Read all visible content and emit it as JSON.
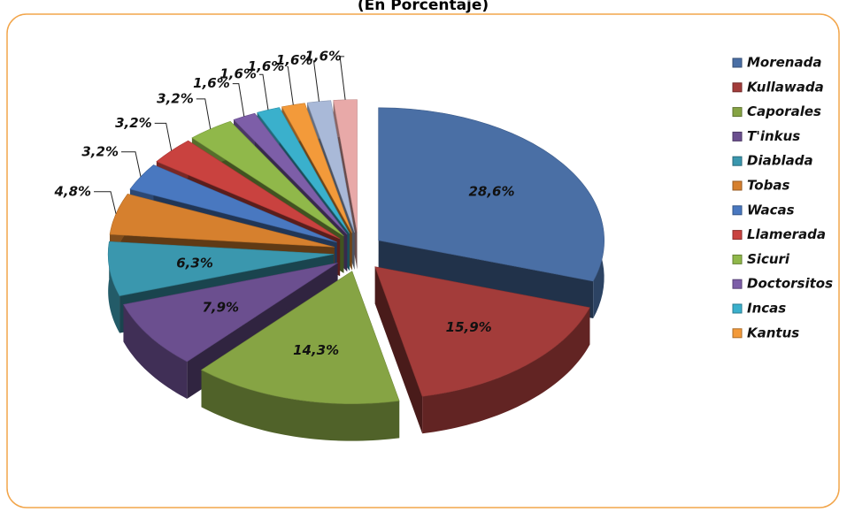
{
  "chart_data": {
    "type": "pie3d",
    "title": "(En Porcentaje)",
    "categories": [
      "Morenada",
      "Kullawada",
      "Caporales",
      "T'inkus",
      "Diablada",
      "Tobas",
      "Wacas",
      "Llamerada",
      "Sicuri",
      "Doctorsitos",
      "Incas",
      "Kantus",
      null,
      null
    ],
    "values": [
      28.6,
      15.9,
      14.3,
      7.9,
      6.3,
      4.8,
      3.2,
      3.2,
      3.2,
      1.6,
      1.6,
      1.6,
      1.6,
      1.6
    ],
    "value_labels": [
      "28,6%",
      "15,9%",
      "14,3%",
      "7,9%",
      "6,3%",
      "4,8%",
      "3,2%",
      "3,2%",
      "3,2%",
      "1,6%",
      "1,6%",
      "1,6%",
      "1,6%",
      "1,6%"
    ],
    "colors": [
      "#4a6fa5",
      "#a33c3a",
      "#86a444",
      "#6b4f8f",
      "#3a97ae",
      "#d6802e",
      "#4978c0",
      "#c9423f",
      "#90b84a",
      "#7d5ea8",
      "#3ab0cc",
      "#f39a3a",
      "#a9b9d8",
      "#e8a9a8"
    ],
    "legend": "right"
  }
}
